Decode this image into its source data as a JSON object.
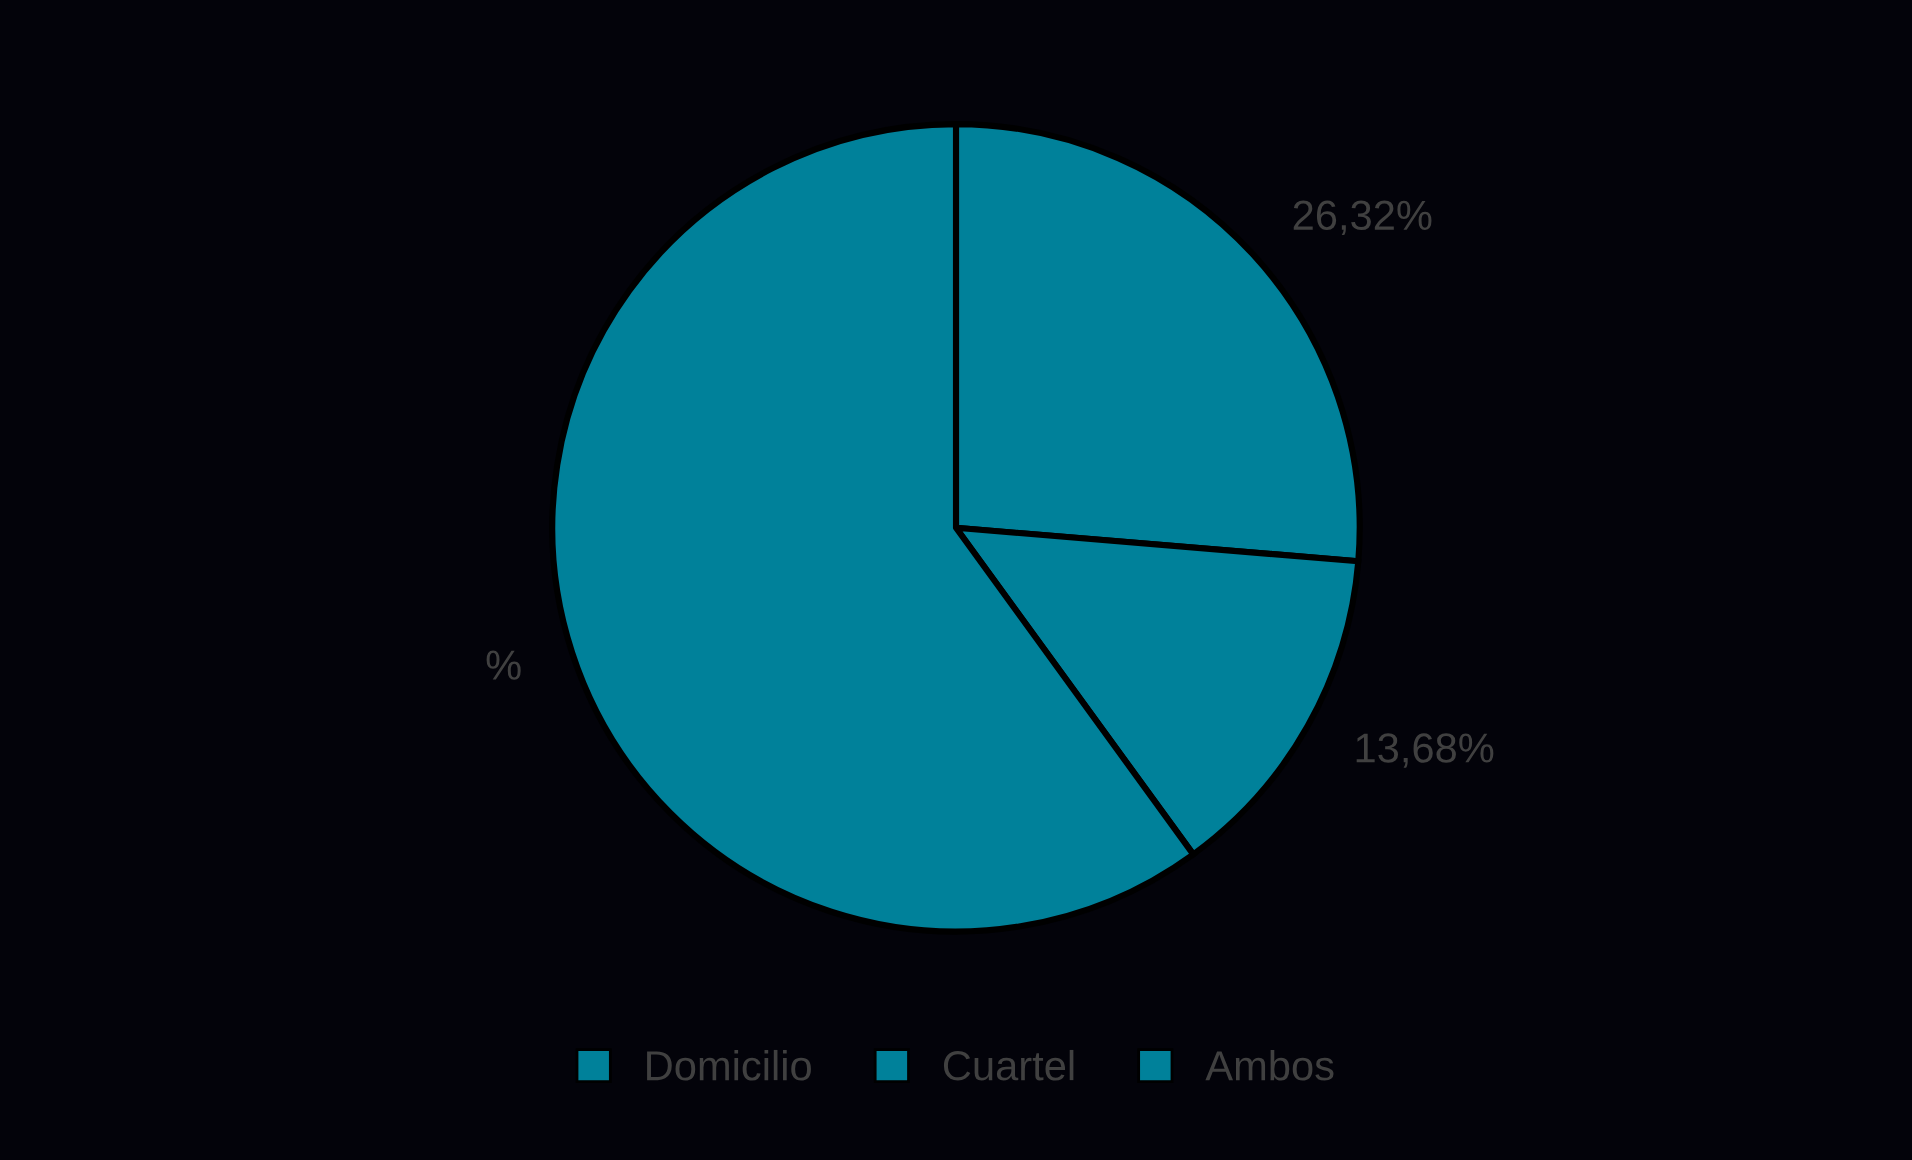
{
  "chart_data": {
    "type": "pie",
    "categories": [
      "Domicilio",
      "Cuartel",
      "Ambos"
    ],
    "values": [
      26.32,
      13.68,
      60
    ],
    "colors": [
      "#00819a",
      "#00819a",
      "#00819a"
    ],
    "value_labels": [
      "26,32%",
      "13,68%",
      "%"
    ],
    "legend": "bottom"
  }
}
